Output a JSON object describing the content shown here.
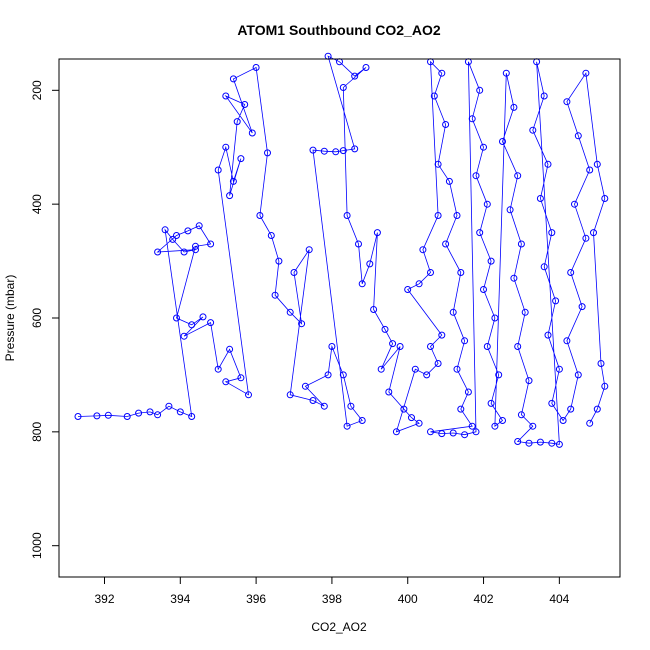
{
  "chart_data": {
    "type": "scatter",
    "title": "ATOM1 Southbound CO2_AO2",
    "xlabel": "CO2_AO2",
    "ylabel": "Pressure (mbar)",
    "xlim": [
      390.8,
      405.6
    ],
    "ylim": [
      1055,
      145
    ],
    "y_inverted": true,
    "x_ticks": [
      392,
      394,
      396,
      398,
      400,
      402,
      404
    ],
    "y_ticks": [
      200,
      400,
      600,
      800,
      1000
    ],
    "grid": false,
    "marker": "open-circle",
    "connected": true,
    "series": [
      {
        "color": "#0000ff",
        "points": [
          [
            391.3,
            773
          ],
          [
            391.8,
            772
          ],
          [
            392.1,
            771
          ],
          [
            392.6,
            773
          ],
          [
            392.9,
            767
          ],
          [
            393.2,
            765
          ],
          [
            393.4,
            770
          ],
          [
            393.7,
            755
          ],
          [
            394.0,
            765
          ],
          [
            394.3,
            773
          ],
          [
            393.6,
            445
          ],
          [
            393.8,
            462
          ],
          [
            394.1,
            484
          ],
          [
            394.4,
            480
          ],
          [
            393.4,
            484
          ],
          [
            393.9,
            455
          ],
          [
            394.2,
            447
          ],
          [
            394.5,
            438
          ],
          [
            394.8,
            470
          ],
          [
            394.4,
            474
          ],
          [
            393.9,
            600
          ],
          [
            394.3,
            612
          ],
          [
            394.6,
            598
          ],
          [
            394.1,
            632
          ],
          [
            394.8,
            608
          ],
          [
            395.0,
            690
          ],
          [
            395.3,
            655
          ],
          [
            395.6,
            705
          ],
          [
            395.2,
            712
          ],
          [
            395.8,
            735
          ],
          [
            395.0,
            340
          ],
          [
            395.2,
            300
          ],
          [
            395.4,
            360
          ],
          [
            395.6,
            320
          ],
          [
            395.3,
            385
          ],
          [
            395.5,
            255
          ],
          [
            395.7,
            225
          ],
          [
            395.2,
            210
          ],
          [
            395.9,
            275
          ],
          [
            395.4,
            180
          ],
          [
            396.0,
            160
          ],
          [
            396.3,
            310
          ],
          [
            396.1,
            420
          ],
          [
            396.4,
            455
          ],
          [
            396.6,
            500
          ],
          [
            396.5,
            560
          ],
          [
            396.9,
            590
          ],
          [
            397.2,
            610
          ],
          [
            397.0,
            520
          ],
          [
            397.4,
            480
          ],
          [
            396.9,
            735
          ],
          [
            397.5,
            745
          ],
          [
            397.8,
            755
          ],
          [
            397.3,
            720
          ],
          [
            397.9,
            700
          ],
          [
            398.0,
            650
          ],
          [
            398.3,
            700
          ],
          [
            398.5,
            755
          ],
          [
            398.8,
            780
          ],
          [
            398.4,
            790
          ],
          [
            397.5,
            305
          ],
          [
            397.8,
            307
          ],
          [
            398.1,
            308
          ],
          [
            398.3,
            306
          ],
          [
            398.6,
            303
          ],
          [
            397.9,
            140
          ],
          [
            398.2,
            150
          ],
          [
            398.6,
            175
          ],
          [
            398.9,
            160
          ],
          [
            398.3,
            195
          ],
          [
            398.4,
            420
          ],
          [
            398.7,
            470
          ],
          [
            398.8,
            540
          ],
          [
            399.0,
            505
          ],
          [
            399.2,
            450
          ],
          [
            399.1,
            585
          ],
          [
            399.4,
            620
          ],
          [
            399.6,
            645
          ],
          [
            399.3,
            690
          ],
          [
            399.8,
            650
          ],
          [
            399.5,
            730
          ],
          [
            399.9,
            760
          ],
          [
            400.1,
            775
          ],
          [
            400.3,
            785
          ],
          [
            399.7,
            800
          ],
          [
            400.2,
            690
          ],
          [
            400.5,
            700
          ],
          [
            400.8,
            680
          ],
          [
            400.6,
            650
          ],
          [
            400.9,
            630
          ],
          [
            400.0,
            550
          ],
          [
            400.3,
            540
          ],
          [
            400.6,
            520
          ],
          [
            400.4,
            480
          ],
          [
            400.8,
            420
          ],
          [
            400.6,
            150
          ],
          [
            400.9,
            170
          ],
          [
            400.7,
            210
          ],
          [
            401.0,
            260
          ],
          [
            400.8,
            330
          ],
          [
            401.1,
            360
          ],
          [
            401.3,
            420
          ],
          [
            401.0,
            470
          ],
          [
            401.4,
            520
          ],
          [
            401.2,
            590
          ],
          [
            401.5,
            640
          ],
          [
            401.3,
            690
          ],
          [
            401.6,
            730
          ],
          [
            401.4,
            760
          ],
          [
            401.7,
            790
          ],
          [
            400.6,
            800
          ],
          [
            400.9,
            803
          ],
          [
            401.2,
            802
          ],
          [
            401.5,
            805
          ],
          [
            401.8,
            800
          ],
          [
            401.6,
            150
          ],
          [
            401.9,
            200
          ],
          [
            401.7,
            250
          ],
          [
            402.0,
            300
          ],
          [
            401.8,
            350
          ],
          [
            402.1,
            400
          ],
          [
            401.9,
            450
          ],
          [
            402.2,
            500
          ],
          [
            402.0,
            550
          ],
          [
            402.3,
            600
          ],
          [
            402.1,
            650
          ],
          [
            402.4,
            700
          ],
          [
            402.2,
            750
          ],
          [
            402.5,
            780
          ],
          [
            402.3,
            790
          ],
          [
            402.6,
            170
          ],
          [
            402.8,
            230
          ],
          [
            402.5,
            290
          ],
          [
            402.9,
            350
          ],
          [
            402.7,
            410
          ],
          [
            403.0,
            470
          ],
          [
            402.8,
            530
          ],
          [
            403.1,
            590
          ],
          [
            402.9,
            650
          ],
          [
            403.2,
            710
          ],
          [
            403.0,
            770
          ],
          [
            403.3,
            790
          ],
          [
            402.9,
            817
          ],
          [
            403.2,
            820
          ],
          [
            403.5,
            818
          ],
          [
            403.8,
            820
          ],
          [
            404.0,
            822
          ],
          [
            403.4,
            150
          ],
          [
            403.6,
            210
          ],
          [
            403.3,
            270
          ],
          [
            403.7,
            330
          ],
          [
            403.5,
            390
          ],
          [
            403.8,
            450
          ],
          [
            403.6,
            510
          ],
          [
            403.9,
            570
          ],
          [
            403.7,
            630
          ],
          [
            404.0,
            690
          ],
          [
            403.8,
            750
          ],
          [
            404.1,
            780
          ],
          [
            404.3,
            760
          ],
          [
            404.5,
            700
          ],
          [
            404.2,
            640
          ],
          [
            404.6,
            580
          ],
          [
            404.3,
            520
          ],
          [
            404.7,
            460
          ],
          [
            404.4,
            400
          ],
          [
            404.8,
            340
          ],
          [
            404.5,
            280
          ],
          [
            404.2,
            220
          ],
          [
            404.7,
            170
          ],
          [
            405.0,
            330
          ],
          [
            405.2,
            390
          ],
          [
            404.9,
            450
          ],
          [
            405.1,
            680
          ],
          [
            405.2,
            720
          ],
          [
            405.0,
            760
          ],
          [
            404.8,
            785
          ]
        ]
      }
    ]
  }
}
